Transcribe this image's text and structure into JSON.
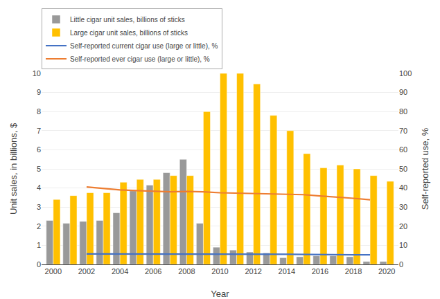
{
  "chart_data": {
    "type": "bar",
    "xlabel": "Year",
    "ylabel": "Unit sales, in billions, $",
    "y2label": "Self-reported use, %",
    "x": [
      2000,
      2001,
      2002,
      2003,
      2004,
      2005,
      2006,
      2007,
      2008,
      2009,
      2010,
      2011,
      2012,
      2013,
      2014,
      2015,
      2016,
      2017,
      2018,
      2019,
      2020
    ],
    "xlim": [
      1999.3,
      2020.7
    ],
    "xticks": [
      2000,
      2002,
      2004,
      2006,
      2008,
      2010,
      2012,
      2014,
      2016,
      2018,
      2020
    ],
    "ylim": [
      0,
      10
    ],
    "yticks": [
      0,
      1,
      2,
      3,
      4,
      5,
      6,
      7,
      8,
      9,
      10
    ],
    "y2lim": [
      0,
      100
    ],
    "y2ticks": [
      0,
      10,
      20,
      30,
      40,
      50,
      60,
      70,
      80,
      90,
      100
    ],
    "grid": true,
    "legend": "top",
    "series": [
      {
        "name": "Little cigar unit sales, billions of sticks",
        "type": "bar",
        "color": "#999999",
        "values": [
          2.3,
          2.15,
          2.25,
          2.3,
          2.7,
          3.85,
          4.15,
          4.8,
          5.5,
          2.15,
          0.9,
          0.75,
          0.65,
          0.6,
          0.35,
          0.4,
          0.45,
          0.45,
          0.4,
          0.15,
          0.15
        ]
      },
      {
        "name": "Large cigar unit sales, billions of sticks",
        "type": "bar",
        "color": "#FFC000",
        "values": [
          3.4,
          3.6,
          3.75,
          3.75,
          4.3,
          4.45,
          4.45,
          4.65,
          4.65,
          8.0,
          10.0,
          10.0,
          9.45,
          7.8,
          7.0,
          5.8,
          5.05,
          5.2,
          5.0,
          4.65,
          4.35
        ]
      },
      {
        "name": "Self-reported current cigar use (large or little), %",
        "type": "line",
        "axis": "y2",
        "color": "#4472C4",
        "x": [
          2002,
          2003,
          2004,
          2005,
          2006,
          2007,
          2008,
          2009,
          2010,
          2011,
          2012,
          2013,
          2014,
          2015,
          2016,
          2017,
          2018,
          2019
        ],
        "values": [
          5.5,
          5.5,
          5.5,
          5.4,
          5.4,
          5.4,
          5.3,
          5.3,
          5.4,
          5.4,
          5.3,
          5.3,
          5.3,
          5.2,
          5.2,
          5.1,
          5.0,
          5.0
        ]
      },
      {
        "name": "Self-reported ever cigar use (large or little), %",
        "type": "line",
        "axis": "y2",
        "color": "#ED7D31",
        "x": [
          2002,
          2003,
          2004,
          2005,
          2006,
          2007,
          2008,
          2009,
          2010,
          2011,
          2012,
          2013,
          2014,
          2015,
          2016,
          2017,
          2018,
          2019
        ],
        "values": [
          40.5,
          39.8,
          39.0,
          38.6,
          38.2,
          38.0,
          38.2,
          38.0,
          37.5,
          37.3,
          37.0,
          36.8,
          36.8,
          36.5,
          35.8,
          35.3,
          34.6,
          33.8
        ]
      }
    ]
  }
}
